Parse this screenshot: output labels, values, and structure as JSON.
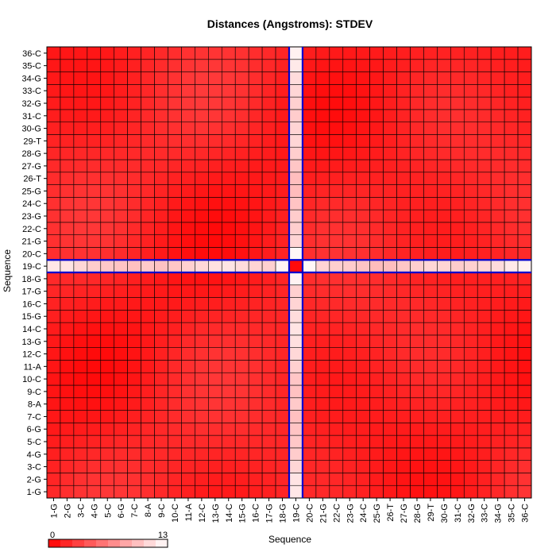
{
  "chart_data": {
    "type": "heatmap",
    "title": "Distances (Angstroms):  STDEV",
    "xlabel": "Sequence",
    "ylabel": "Sequence",
    "labels": [
      "1-G",
      "2-G",
      "3-C",
      "4-G",
      "5-C",
      "6-G",
      "7-C",
      "8-A",
      "9-C",
      "10-C",
      "11-A",
      "12-C",
      "13-G",
      "14-C",
      "15-G",
      "16-C",
      "17-G",
      "18-G",
      "19-C",
      "20-C",
      "21-G",
      "22-C",
      "23-G",
      "24-C",
      "25-G",
      "26-T",
      "27-G",
      "28-G",
      "29-T",
      "30-G",
      "31-C",
      "32-G",
      "33-C",
      "34-G",
      "35-C",
      "36-C"
    ],
    "highlight_index": 18,
    "highlight_row_values": [
      11.8,
      11.6,
      10.9,
      10.4,
      10.2,
      10.0,
      9.8,
      10.3,
      9.9,
      10.1,
      10.6,
      11.0,
      11.4,
      11.6,
      11.2,
      10.8,
      10.6,
      12.4,
      0.5,
      12.6,
      10.8,
      10.5,
      10.4,
      10.0,
      9.6,
      9.7,
      10.1,
      10.5,
      10.9,
      10.8,
      10.4,
      10.6,
      10.9,
      11.2,
      11.9,
      12.3
    ],
    "background_value_range": [
      0.5,
      3.0
    ],
    "colorscale": {
      "min": 0,
      "max": 13,
      "low_color": "#ff0000",
      "high_color": "#ffffff",
      "min_label": "0",
      "max_label": "13"
    },
    "highlight_line_color": "#0000cc",
    "grid": true
  }
}
